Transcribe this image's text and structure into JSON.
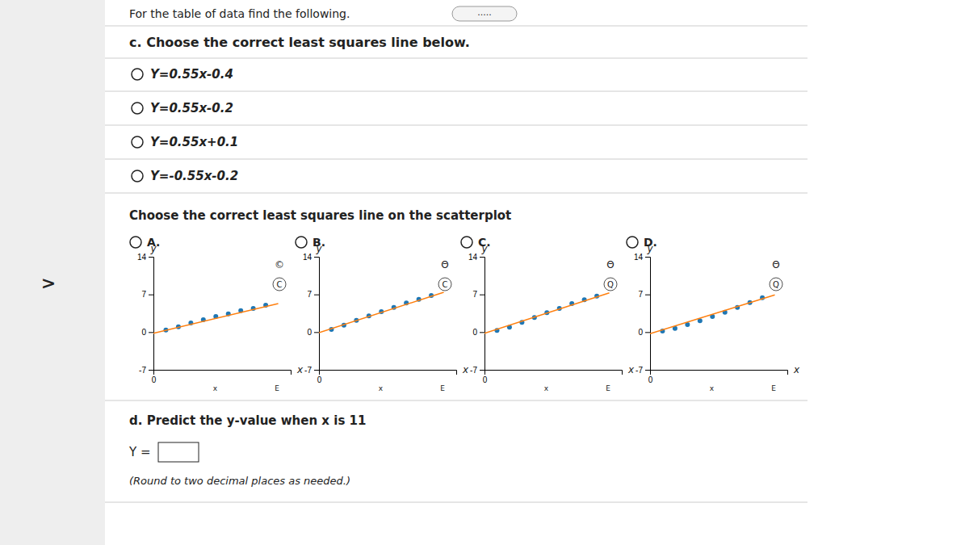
{
  "title": "For the table of data find the following.",
  "annotations": [
    ".....",
    "c. Choose the correct least squares line below.",
    "Y=0.55x-0.4",
    "Y=0.55x-0.2",
    "Y=0.55x+0.1",
    "Y=-0.55x-0.2",
    "Choose the correct least squares line on the scatterplot",
    "d. Predict the y-value when x is 11",
    "Y =",
    "(Round to two decimal places as needed.)",
    ">"
  ],
  "chart_data": [
    {
      "type": "scatter",
      "title": "A.",
      "x_label": "x",
      "y_label": "y",
      "xlim": [
        0,
        11
      ],
      "ylim": [
        -7,
        14
      ],
      "xticks": [
        0
      ],
      "yticks": [
        -7,
        0,
        7,
        14
      ],
      "annotations": [
        "©",
        "C",
        "x",
        "E"
      ],
      "series": [
        {
          "type": "scatter",
          "x": [
            1,
            2,
            3,
            4,
            5,
            6,
            7,
            8,
            9
          ],
          "values": [
            0.4,
            1.0,
            1.7,
            2.3,
            2.9,
            3.4,
            4.0,
            4.4,
            5.0
          ]
        },
        {
          "type": "line",
          "x": [
            0,
            10
          ],
          "values": [
            -0.2,
            5.3
          ]
        }
      ]
    },
    {
      "type": "scatter",
      "title": "B.",
      "x_label": "x",
      "y_label": "y",
      "xlim": [
        0,
        11
      ],
      "ylim": [
        -7,
        14
      ],
      "xticks": [
        0
      ],
      "yticks": [
        -7,
        0,
        7,
        14
      ],
      "annotations": [
        "Θ",
        "C",
        "x",
        "E"
      ],
      "series": [
        {
          "type": "scatter",
          "x": [
            1,
            2,
            3,
            4,
            5,
            6,
            7,
            8,
            9
          ],
          "values": [
            0.5,
            1.3,
            2.2,
            3.0,
            3.8,
            4.6,
            5.4,
            6.1,
            6.8
          ]
        },
        {
          "type": "line",
          "x": [
            0,
            10
          ],
          "values": [
            -0.1,
            7.4
          ]
        }
      ]
    },
    {
      "type": "scatter",
      "title": "C.",
      "x_label": "x",
      "y_label": "y",
      "xlim": [
        0,
        11
      ],
      "ylim": [
        -7,
        14
      ],
      "xticks": [
        0
      ],
      "yticks": [
        -7,
        0,
        7,
        14
      ],
      "annotations": [
        "Θ",
        "Q",
        "x",
        "E"
      ],
      "series": [
        {
          "type": "scatter",
          "x": [
            1,
            2,
            3,
            4,
            5,
            6,
            7,
            8,
            9
          ],
          "values": [
            0.3,
            0.9,
            1.8,
            2.7,
            3.6,
            4.4,
            5.3,
            6.0,
            6.7
          ]
        },
        {
          "type": "line",
          "x": [
            0,
            10
          ],
          "values": [
            -0.2,
            7.3
          ]
        }
      ]
    },
    {
      "type": "scatter",
      "title": "D.",
      "x_label": "x",
      "y_label": "y",
      "xlim": [
        0,
        11
      ],
      "ylim": [
        -7,
        14
      ],
      "xticks": [
        0
      ],
      "yticks": [
        -7,
        0,
        7,
        14
      ],
      "annotations": [
        "Θ",
        "Q",
        "x",
        "E"
      ],
      "series": [
        {
          "type": "scatter",
          "x": [
            1,
            2,
            3,
            4,
            5,
            6,
            7,
            8,
            9
          ],
          "values": [
            0.2,
            0.7,
            1.4,
            2.1,
            2.9,
            3.7,
            4.6,
            5.5,
            6.4
          ]
        },
        {
          "type": "line",
          "x": [
            0,
            10
          ],
          "values": [
            -0.3,
            6.9
          ]
        }
      ]
    }
  ]
}
